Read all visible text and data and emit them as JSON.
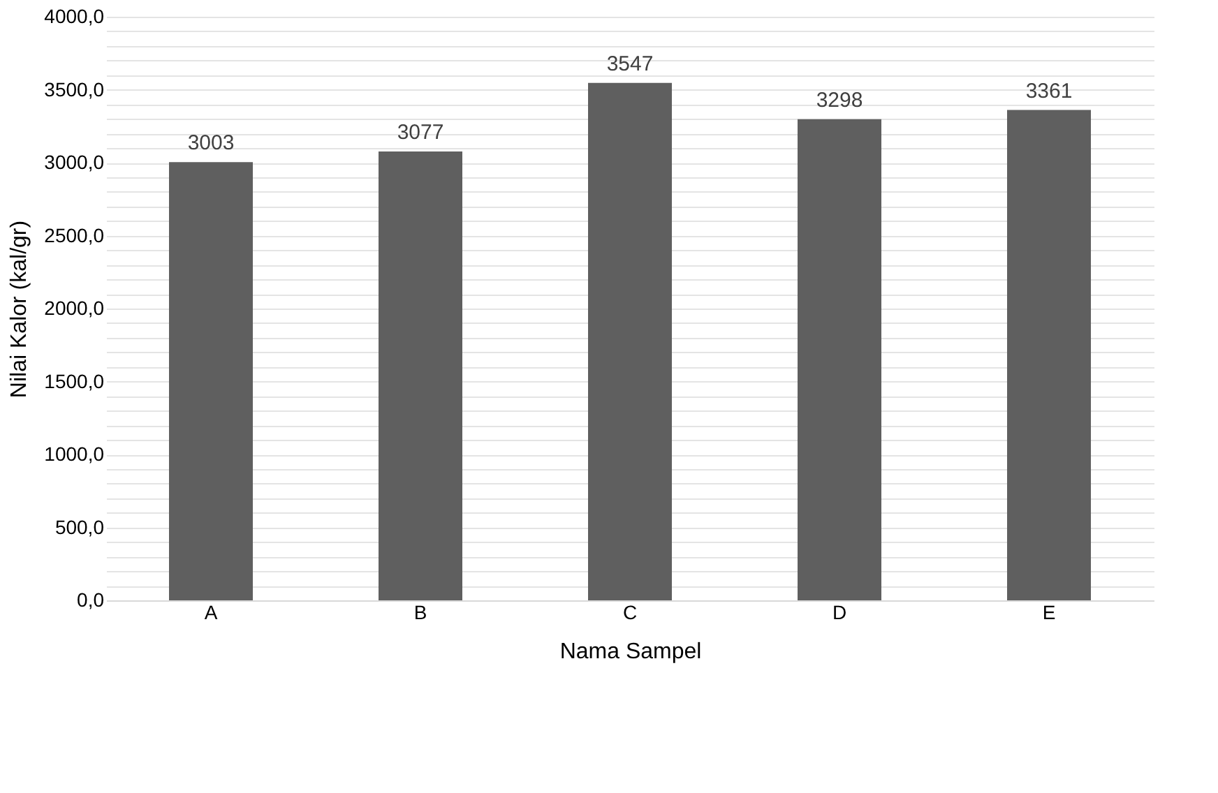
{
  "chart_data": {
    "type": "bar",
    "xlabel": "Nama Sampel",
    "ylabel": "Nilai Kalor (kal/gr)",
    "categories": [
      "A",
      "B",
      "C",
      "D",
      "E"
    ],
    "values": [
      3003,
      3077,
      3547,
      3298,
      3361
    ],
    "color": "#5f5f5f",
    "data_labels": true,
    "grid": "y",
    "ylim": [
      0,
      4000
    ],
    "yticks": [
      {
        "value": 0,
        "label": "0,0"
      },
      {
        "value": 100,
        "label": null
      },
      {
        "value": 200,
        "label": null
      },
      {
        "value": 300,
        "label": null
      },
      {
        "value": 400,
        "label": null
      },
      {
        "value": 500,
        "label": "500,0"
      },
      {
        "value": 600,
        "label": null
      },
      {
        "value": 700,
        "label": null
      },
      {
        "value": 800,
        "label": null
      },
      {
        "value": 900,
        "label": null
      },
      {
        "value": 1000,
        "label": "1000,0"
      },
      {
        "value": 1100,
        "label": null
      },
      {
        "value": 1200,
        "label": null
      },
      {
        "value": 1300,
        "label": null
      },
      {
        "value": 1400,
        "label": null
      },
      {
        "value": 1500,
        "label": "1500,0"
      },
      {
        "value": 1600,
        "label": null
      },
      {
        "value": 1700,
        "label": null
      },
      {
        "value": 1800,
        "label": null
      },
      {
        "value": 1900,
        "label": null
      },
      {
        "value": 2000,
        "label": "2000,0"
      },
      {
        "value": 2100,
        "label": null
      },
      {
        "value": 2200,
        "label": null
      },
      {
        "value": 2300,
        "label": null
      },
      {
        "value": 2400,
        "label": null
      },
      {
        "value": 2500,
        "label": "2500,0"
      },
      {
        "value": 2600,
        "label": null
      },
      {
        "value": 2700,
        "label": null
      },
      {
        "value": 2800,
        "label": null
      },
      {
        "value": 2900,
        "label": null
      },
      {
        "value": 3000,
        "label": "3000,0"
      },
      {
        "value": 3100,
        "label": null
      },
      {
        "value": 3200,
        "label": null
      },
      {
        "value": 3300,
        "label": null
      },
      {
        "value": 3400,
        "label": null
      },
      {
        "value": 3500,
        "label": "3500,0"
      },
      {
        "value": 3600,
        "label": null
      },
      {
        "value": 3700,
        "label": null
      },
      {
        "value": 3800,
        "label": null
      },
      {
        "value": 3900,
        "label": null
      },
      {
        "value": 4000,
        "label": "4000,0"
      }
    ]
  }
}
